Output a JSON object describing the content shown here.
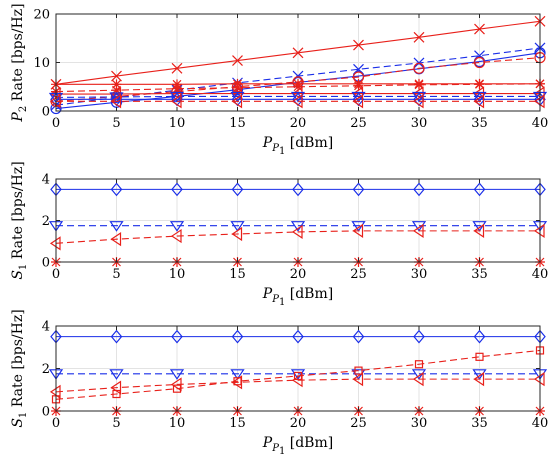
{
  "chart_data": [
    {
      "type": "line",
      "x": [
        0,
        5,
        10,
        15,
        20,
        25,
        30,
        35,
        40
      ],
      "xlim": [
        0,
        40
      ],
      "ylim": [
        0,
        20
      ],
      "xticks": [
        "0",
        "5",
        "10",
        "15",
        "20",
        "25",
        "30",
        "35",
        "40"
      ],
      "yticks": [
        "0",
        "10",
        "20"
      ],
      "xlabel": {
        "var": "P",
        "sub": "P",
        "subsub": "1",
        "unit": " [dBm]"
      },
      "ylabel": {
        "var": "P",
        "sub": "2",
        "unit": " Rate [bps/Hz]"
      },
      "grid": true,
      "series": [
        {
          "values": [
            5.5,
            7.2,
            8.8,
            10.4,
            12.0,
            13.6,
            15.2,
            16.9,
            18.5
          ],
          "color": "#e8201a",
          "dash": "solid",
          "marker": "x"
        },
        {
          "values": [
            1.2,
            2.8,
            4.3,
            5.8,
            7.2,
            8.6,
            9.9,
            11.4,
            13.0
          ],
          "color": "#1a2ee8",
          "dash": "dash",
          "marker": "x"
        },
        {
          "values": [
            0.5,
            1.8,
            3.0,
            4.4,
            5.9,
            7.2,
            8.7,
            10.2,
            12.0
          ],
          "color": "#1a2ee8",
          "dash": "solid",
          "marker": "o"
        },
        {
          "values": [
            2.0,
            3.0,
            4.0,
            5.0,
            6.0,
            7.0,
            8.8,
            10.0,
            11.0
          ],
          "color": "#e8201a",
          "dash": "dash",
          "marker": "o"
        },
        {
          "values": [
            5.5,
            5.5,
            5.5,
            5.6,
            5.6,
            5.6,
            5.6,
            5.6,
            5.6
          ],
          "color": "#e8201a",
          "dash": "solid",
          "marker": "star"
        },
        {
          "values": [
            4.0,
            4.3,
            4.6,
            4.8,
            5.0,
            5.2,
            5.4,
            5.5,
            5.6
          ],
          "color": "#e8201a",
          "dash": "dash",
          "marker": "star"
        },
        {
          "values": [
            3.5,
            3.5,
            3.6,
            3.6,
            3.6,
            3.6,
            3.6,
            3.6,
            3.6
          ],
          "color": "#e8201a",
          "dash": "solid",
          "marker": "tri-left"
        },
        {
          "values": [
            2.8,
            2.9,
            3.0,
            3.0,
            3.0,
            3.0,
            3.0,
            3.0,
            3.0
          ],
          "color": "#1a2ee8",
          "dash": "dash",
          "marker": "tri-down"
        },
        {
          "values": [
            2.4,
            2.4,
            2.4,
            2.4,
            2.4,
            2.4,
            2.4,
            2.4,
            2.4
          ],
          "color": "#1a2ee8",
          "dash": "solid",
          "marker": "diamond"
        },
        {
          "values": [
            2.0,
            2.0,
            2.0,
            2.0,
            2.0,
            2.0,
            2.0,
            2.0,
            2.0
          ],
          "color": "#e8201a",
          "dash": "dash",
          "marker": "tri-left"
        }
      ]
    },
    {
      "type": "line",
      "x": [
        0,
        5,
        10,
        15,
        20,
        25,
        30,
        35,
        40
      ],
      "xlim": [
        0,
        40
      ],
      "ylim": [
        0,
        4
      ],
      "xticks": [
        "0",
        "5",
        "10",
        "15",
        "20",
        "25",
        "30",
        "35",
        "40"
      ],
      "yticks": [
        "0",
        "2",
        "4"
      ],
      "xlabel": {
        "var": "P",
        "sub": "P",
        "subsub": "1",
        "unit": " [dBm]"
      },
      "ylabel": {
        "var": "S",
        "sub": "1",
        "unit": " Rate [bps/Hz]"
      },
      "grid": true,
      "series": [
        {
          "values": [
            3.5,
            3.5,
            3.5,
            3.5,
            3.5,
            3.5,
            3.5,
            3.5,
            3.5
          ],
          "color": "#1a2ee8",
          "dash": "solid",
          "marker": "diamond"
        },
        {
          "values": [
            1.75,
            1.75,
            1.75,
            1.75,
            1.75,
            1.75,
            1.75,
            1.75,
            1.75
          ],
          "color": "#1a2ee8",
          "dash": "dash",
          "marker": "tri-down"
        },
        {
          "values": [
            0.9,
            1.1,
            1.25,
            1.35,
            1.45,
            1.5,
            1.5,
            1.5,
            1.5
          ],
          "color": "#e8201a",
          "dash": "dash",
          "marker": "tri-left"
        },
        {
          "values": [
            0,
            0,
            0,
            0,
            0,
            0,
            0,
            0,
            0
          ],
          "color": "#e8201a",
          "dash": "solid",
          "marker": "star"
        }
      ]
    },
    {
      "type": "line",
      "x": [
        0,
        5,
        10,
        15,
        20,
        25,
        30,
        35,
        40
      ],
      "xlim": [
        0,
        40
      ],
      "ylim": [
        0,
        4
      ],
      "xticks": [
        "0",
        "5",
        "10",
        "15",
        "20",
        "25",
        "30",
        "35",
        "40"
      ],
      "yticks": [
        "0",
        "2",
        "4"
      ],
      "xlabel": {
        "var": "P",
        "sub": "P",
        "subsub": "1",
        "unit": " [dBm]"
      },
      "ylabel": {
        "var": "S",
        "sub": "1",
        "unit": " Rate [bps/Hz]"
      },
      "grid": true,
      "series": [
        {
          "values": [
            3.5,
            3.5,
            3.5,
            3.5,
            3.5,
            3.5,
            3.5,
            3.5,
            3.5
          ],
          "color": "#1a2ee8",
          "dash": "solid",
          "marker": "diamond"
        },
        {
          "values": [
            1.75,
            1.75,
            1.75,
            1.75,
            1.75,
            1.75,
            1.75,
            1.75,
            1.75
          ],
          "color": "#1a2ee8",
          "dash": "dash",
          "marker": "tri-down"
        },
        {
          "values": [
            0.55,
            0.8,
            1.05,
            1.4,
            1.65,
            1.9,
            2.2,
            2.55,
            2.85
          ],
          "color": "#e8201a",
          "dash": "dash",
          "marker": "square"
        },
        {
          "values": [
            0.9,
            1.1,
            1.25,
            1.35,
            1.45,
            1.5,
            1.5,
            1.5,
            1.5
          ],
          "color": "#e8201a",
          "dash": "dash",
          "marker": "tri-left"
        },
        {
          "values": [
            0,
            0,
            0,
            0,
            0,
            0,
            0,
            0,
            0
          ],
          "color": "#e8201a",
          "dash": "solid",
          "marker": "star"
        }
      ]
    }
  ]
}
